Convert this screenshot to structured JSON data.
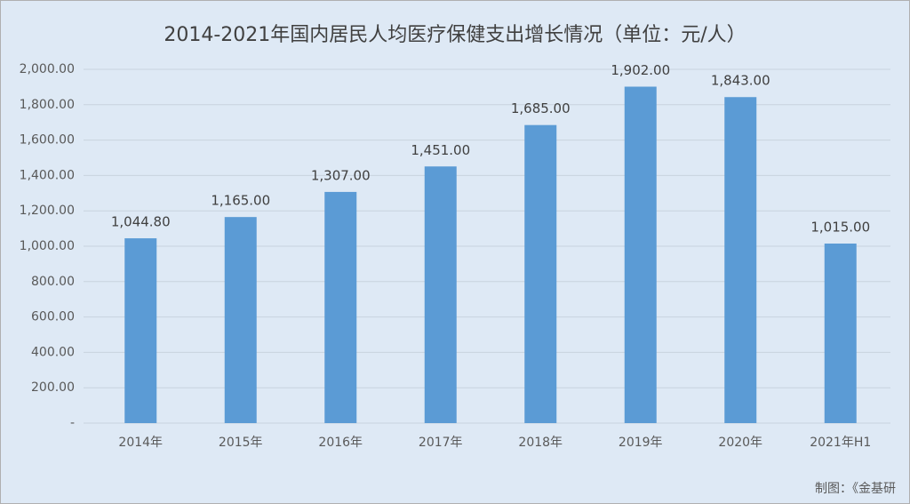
{
  "chart_data": {
    "type": "bar",
    "title": "2014-2021年国内居民人均医疗保健支出增长情况（单位：元/人）",
    "categories": [
      "2014年",
      "2015年",
      "2016年",
      "2017年",
      "2018年",
      "2019年",
      "2020年",
      "2021年H1"
    ],
    "values": [
      1044.8,
      1165,
      1307,
      1451,
      1685,
      1902,
      1843,
      1015
    ],
    "value_labels": [
      "1,044.80",
      "1,165.00",
      "1,307.00",
      "1,451.00",
      "1,685.00",
      "1,902.00",
      "1,843.00",
      "1,015.00"
    ],
    "color": "#5b9bd5",
    "ylim": [
      0,
      2000
    ],
    "yticks": [
      {
        "value": 0,
        "label": "-"
      },
      {
        "value": 200,
        "label": "200.00"
      },
      {
        "value": 400,
        "label": "400.00"
      },
      {
        "value": 600,
        "label": "600.00"
      },
      {
        "value": 800,
        "label": "800.00"
      },
      {
        "value": 1000,
        "label": "1,000.00"
      },
      {
        "value": 1200,
        "label": "1,200.00"
      },
      {
        "value": 1400,
        "label": "1,400.00"
      },
      {
        "value": 1600,
        "label": "1,600.00"
      },
      {
        "value": 1800,
        "label": "1,800.00"
      },
      {
        "value": 2000,
        "label": "2,000.00"
      }
    ],
    "grid": true,
    "source": "制图：《金基研"
  }
}
